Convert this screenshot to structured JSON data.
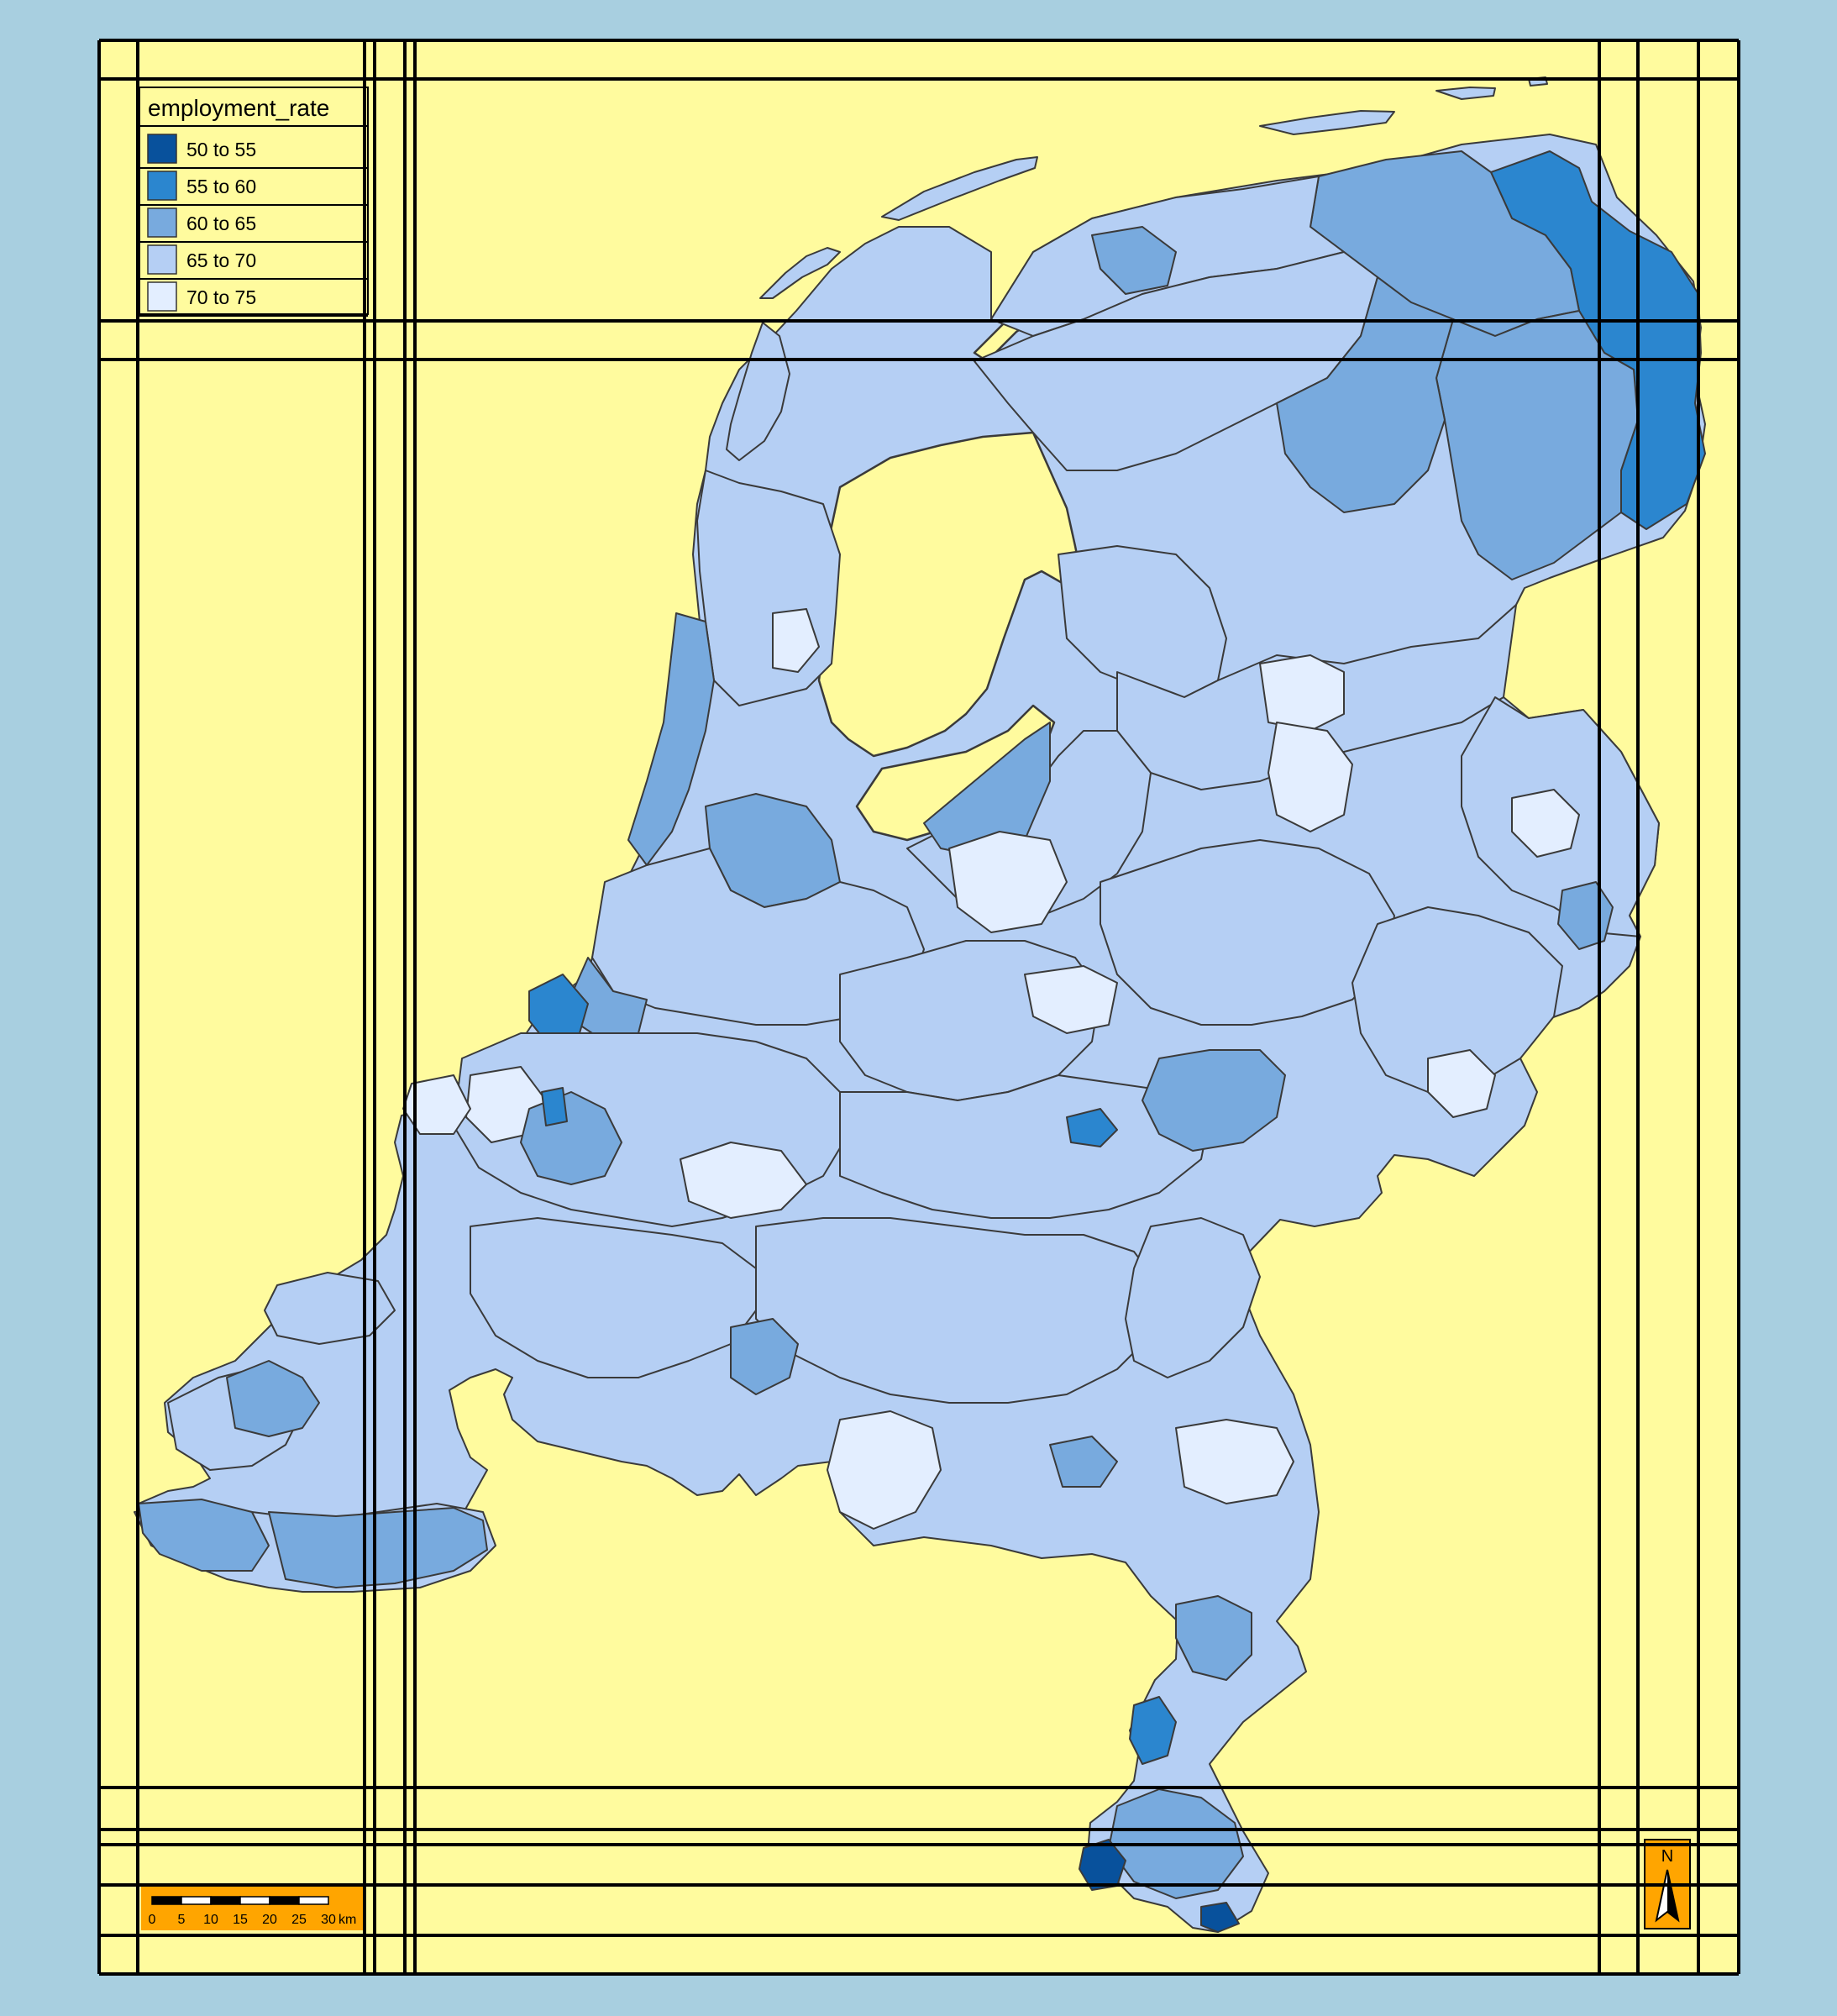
{
  "legend": {
    "title": "employment_rate",
    "classes": [
      {
        "label": "50 to 55",
        "color": "#08519c"
      },
      {
        "label": "55 to 60",
        "color": "#2b86cf"
      },
      {
        "label": "60 to 65",
        "color": "#78aade"
      },
      {
        "label": "65 to 70",
        "color": "#b5cff4"
      },
      {
        "label": "70 to 75",
        "color": "#e3eeff"
      }
    ]
  },
  "scale_bar": {
    "ticks": [
      "0",
      "5",
      "10",
      "15",
      "20",
      "25",
      "30"
    ],
    "unit": "km"
  },
  "north_arrow": {
    "label": "N"
  },
  "colors": {
    "ocean": "#a8cfe0",
    "panel": "#fffb9e",
    "scale_bg": "#ffa500",
    "border": "#333333"
  }
}
